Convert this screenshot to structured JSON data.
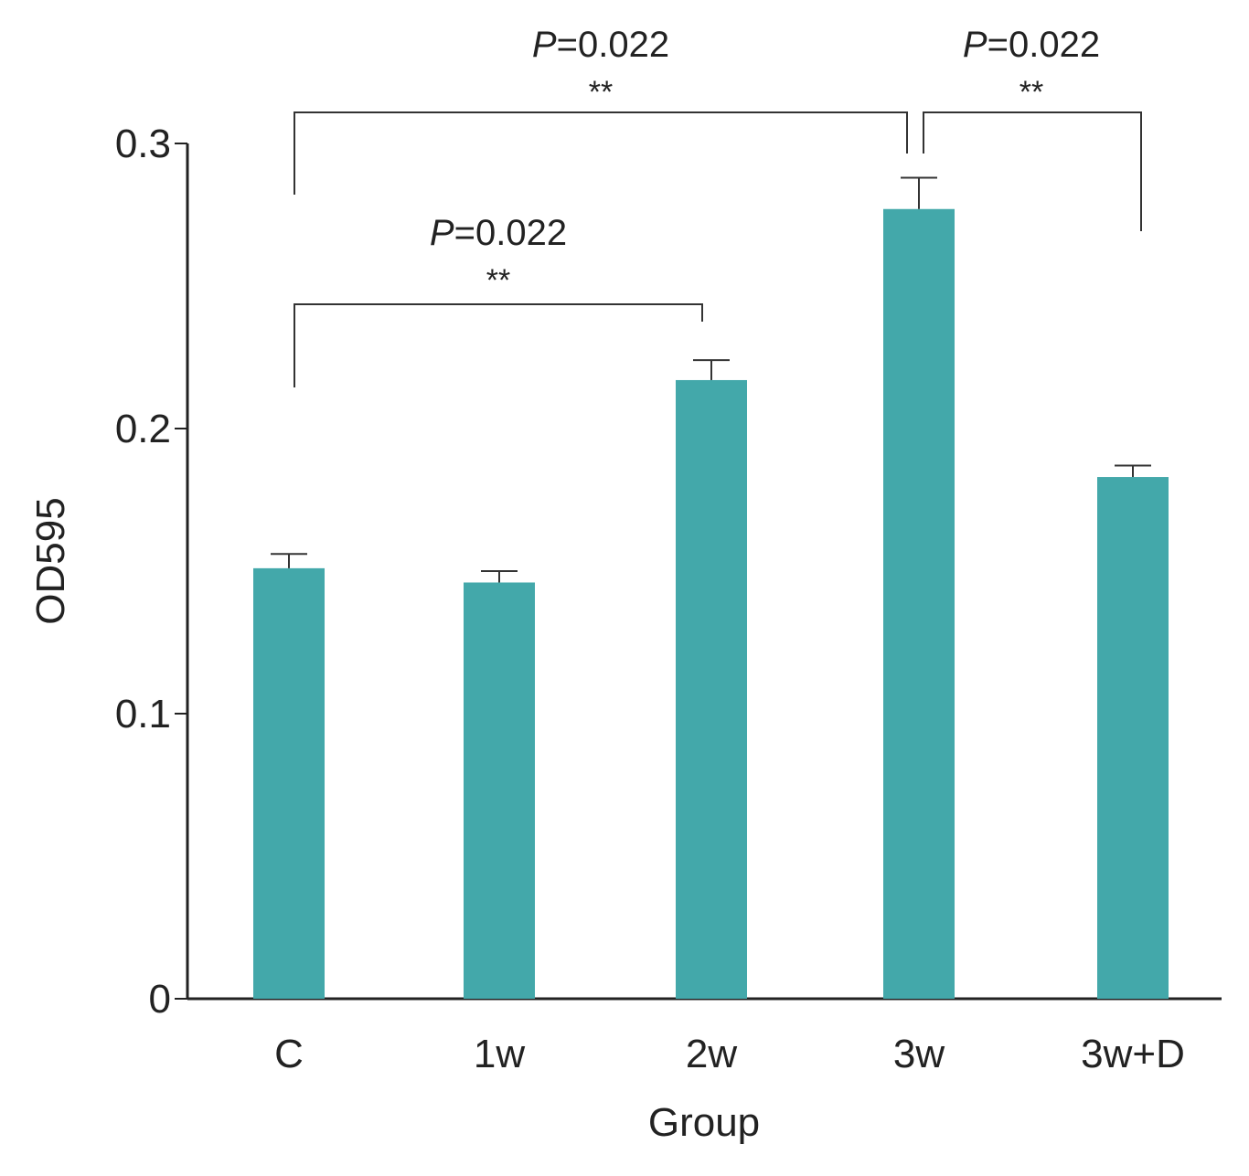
{
  "chart_data": {
    "type": "bar",
    "title": "",
    "xlabel": "Group",
    "ylabel": "OD595",
    "ylim": [
      0,
      0.3
    ],
    "yticks": [
      0,
      0.1,
      0.2,
      0.3
    ],
    "ytick_labels": [
      "0",
      "0.1",
      "0.2",
      "0.3"
    ],
    "categories": [
      "C",
      "1w",
      "2w",
      "3w",
      "3w+D"
    ],
    "values": [
      0.151,
      0.146,
      0.217,
      0.277,
      0.183
    ],
    "errors": [
      0.005,
      0.004,
      0.007,
      0.011,
      0.004
    ],
    "bar_color": "#43a8aa",
    "annotations": [
      {
        "from": "C",
        "to": "2w",
        "p_prefix": "P",
        "p_value": "=0.022",
        "stars": "**"
      },
      {
        "from": "C",
        "to": "3w",
        "p_prefix": "P",
        "p_value": "=0.022",
        "stars": "**"
      },
      {
        "from": "3w",
        "to": "3w+D",
        "p_prefix": "P",
        "p_value": "=0.022",
        "stars": "**"
      }
    ]
  }
}
